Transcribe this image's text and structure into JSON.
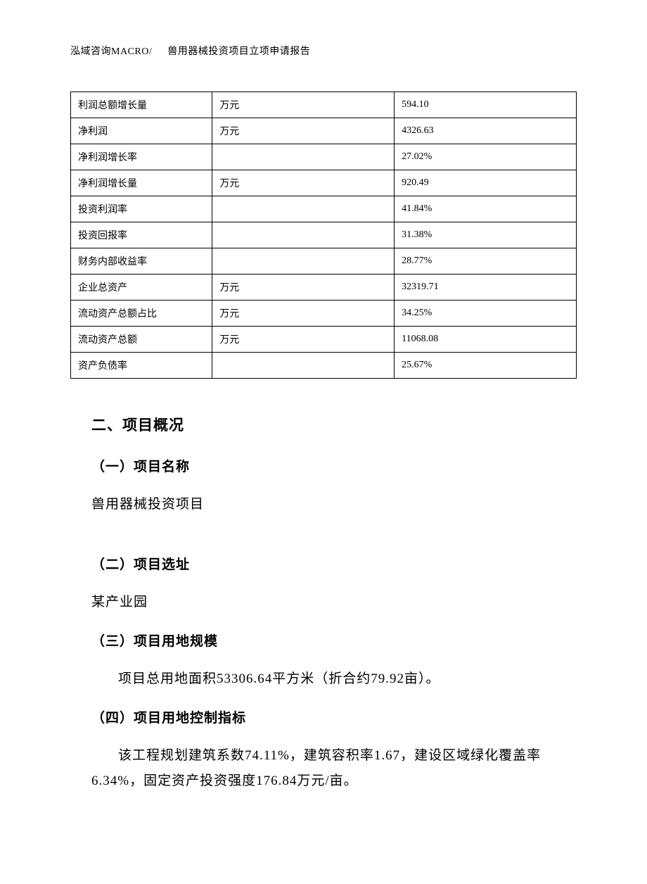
{
  "header": {
    "company": "泓域咨询MACRO/",
    "doc_title": "兽用器械投资项目立项申请报告"
  },
  "table": {
    "columns": {
      "name_width": "28%",
      "unit_width": "36%",
      "value_width": "36%"
    },
    "border_color": "#000000",
    "cell_fontsize": 14,
    "rows": [
      {
        "name": "利润总额增长量",
        "unit": "万元",
        "value": "594.10"
      },
      {
        "name": "净利润",
        "unit": "万元",
        "value": "4326.63"
      },
      {
        "name": "净利润增长率",
        "unit": "",
        "value": "27.02%"
      },
      {
        "name": "净利润增长量",
        "unit": "万元",
        "value": "920.49"
      },
      {
        "name": "投资利润率",
        "unit": "",
        "value": "41.84%"
      },
      {
        "name": "投资回报率",
        "unit": "",
        "value": "31.38%"
      },
      {
        "name": "财务内部收益率",
        "unit": "",
        "value": "28.77%"
      },
      {
        "name": "企业总资产",
        "unit": "万元",
        "value": "32319.71"
      },
      {
        "name": "流动资产总额占比",
        "unit": "万元",
        "value": "34.25%"
      },
      {
        "name": "流动资产总额",
        "unit": "万元",
        "value": "11068.08"
      },
      {
        "name": "资产负债率",
        "unit": "",
        "value": "25.67%"
      }
    ]
  },
  "sections": {
    "main_title": "二、项目概况",
    "s1": {
      "title": "（一）项目名称",
      "body": "兽用器械投资项目"
    },
    "s2": {
      "title": "（二）项目选址",
      "body": "某产业园"
    },
    "s3": {
      "title": "（三）项目用地规模",
      "body": "项目总用地面积53306.64平方米（折合约79.92亩）。"
    },
    "s4": {
      "title": "（四）项目用地控制指标",
      "body": "该工程规划建筑系数74.11%，建筑容积率1.67，建设区域绿化覆盖率6.34%，固定资产投资强度176.84万元/亩。"
    }
  },
  "styling": {
    "background_color": "#ffffff",
    "text_color": "#000000",
    "body_fontsize": 19,
    "title_fontsize": 21,
    "font_family": "SimSun"
  }
}
